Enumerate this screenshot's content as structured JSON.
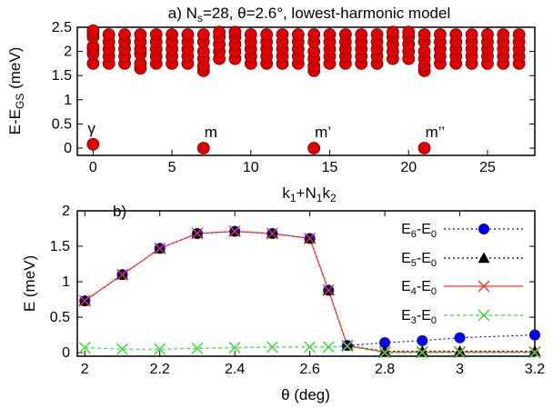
{
  "colors": {
    "red": "#e00000",
    "blue": "#0000ee",
    "black": "#000000",
    "green": "#00cc00",
    "red_line": "#ff3030",
    "green_line": "#30e030"
  },
  "chart_data": [
    {
      "type": "scatter",
      "title": {
        "a": "a) N",
        "sub": "s",
        "b": "=28, θ=2.6°,  lowest-harmonic model"
      },
      "ylabel": {
        "a": "E-E",
        "sub": "GS",
        "b": " (meV)"
      },
      "xlabel": {
        "a": "k",
        "s1": "1",
        "b": "+N",
        "s2": "1",
        "c": "k",
        "s3": "2"
      },
      "xlim": [
        -1,
        28
      ],
      "ylim": [
        -0.15,
        2.5
      ],
      "xticks": [
        "0",
        "5",
        "10",
        "15",
        "20",
        "25"
      ],
      "yticks": [
        "0",
        "0.5",
        "1",
        "1.5",
        "2",
        "2.5"
      ],
      "points": [
        [
          0,
          0.08
        ],
        [
          0,
          1.75
        ],
        [
          0,
          1.95
        ],
        [
          0,
          2.05
        ],
        [
          0,
          2.1
        ],
        [
          0,
          2.3
        ],
        [
          0,
          2.38
        ],
        [
          0,
          2.43
        ],
        [
          1,
          1.75
        ],
        [
          1,
          1.9
        ],
        [
          1,
          2.05
        ],
        [
          1,
          2.2
        ],
        [
          1,
          2.35
        ],
        [
          2,
          1.75
        ],
        [
          2,
          1.9
        ],
        [
          2,
          2.05
        ],
        [
          2,
          2.2
        ],
        [
          2,
          2.35
        ],
        [
          3,
          1.65
        ],
        [
          3,
          1.75
        ],
        [
          3,
          1.95
        ],
        [
          3,
          2.05
        ],
        [
          3,
          2.2
        ],
        [
          3,
          2.35
        ],
        [
          4,
          1.75
        ],
        [
          4,
          1.9
        ],
        [
          4,
          2.05
        ],
        [
          4,
          2.2
        ],
        [
          4,
          2.35
        ],
        [
          5,
          1.75
        ],
        [
          5,
          1.9
        ],
        [
          5,
          2.05
        ],
        [
          5,
          2.2
        ],
        [
          5,
          2.35
        ],
        [
          6,
          1.75
        ],
        [
          6,
          1.9
        ],
        [
          6,
          2.05
        ],
        [
          6,
          2.2
        ],
        [
          6,
          2.35
        ],
        [
          7,
          0.0
        ],
        [
          7,
          1.6
        ],
        [
          7,
          1.7
        ],
        [
          7,
          1.85
        ],
        [
          7,
          2.0
        ],
        [
          7,
          2.2
        ],
        [
          7,
          2.35
        ],
        [
          8,
          1.85
        ],
        [
          8,
          2.0
        ],
        [
          8,
          2.15
        ],
        [
          8,
          2.3
        ],
        [
          8,
          2.4
        ],
        [
          9,
          1.85
        ],
        [
          9,
          2.0
        ],
        [
          9,
          2.15
        ],
        [
          9,
          2.3
        ],
        [
          9,
          2.4
        ],
        [
          10,
          1.75
        ],
        [
          10,
          1.9
        ],
        [
          10,
          2.05
        ],
        [
          10,
          2.2
        ],
        [
          10,
          2.35
        ],
        [
          11,
          1.75
        ],
        [
          11,
          1.9
        ],
        [
          11,
          2.05
        ],
        [
          11,
          2.2
        ],
        [
          11,
          2.35
        ],
        [
          12,
          1.75
        ],
        [
          12,
          1.9
        ],
        [
          12,
          2.05
        ],
        [
          12,
          2.2
        ],
        [
          12,
          2.35
        ],
        [
          13,
          1.75
        ],
        [
          13,
          1.9
        ],
        [
          13,
          2.05
        ],
        [
          13,
          2.2
        ],
        [
          13,
          2.35
        ],
        [
          14,
          0.0
        ],
        [
          14,
          1.6
        ],
        [
          14,
          1.7
        ],
        [
          14,
          1.85
        ],
        [
          14,
          2.0
        ],
        [
          14,
          2.2
        ],
        [
          14,
          2.35
        ],
        [
          15,
          1.75
        ],
        [
          15,
          1.9
        ],
        [
          15,
          2.05
        ],
        [
          15,
          2.2
        ],
        [
          15,
          2.35
        ],
        [
          16,
          1.75
        ],
        [
          16,
          1.9
        ],
        [
          16,
          2.05
        ],
        [
          16,
          2.2
        ],
        [
          16,
          2.35
        ],
        [
          17,
          1.75
        ],
        [
          17,
          1.9
        ],
        [
          17,
          2.05
        ],
        [
          17,
          2.2
        ],
        [
          17,
          2.35
        ],
        [
          18,
          1.75
        ],
        [
          18,
          1.9
        ],
        [
          18,
          2.05
        ],
        [
          18,
          2.2
        ],
        [
          18,
          2.35
        ],
        [
          19,
          1.85
        ],
        [
          19,
          2.0
        ],
        [
          19,
          2.15
        ],
        [
          19,
          2.3
        ],
        [
          19,
          2.4
        ],
        [
          20,
          1.85
        ],
        [
          20,
          2.0
        ],
        [
          20,
          2.15
        ],
        [
          20,
          2.3
        ],
        [
          20,
          2.4
        ],
        [
          21,
          0.0
        ],
        [
          21,
          1.6
        ],
        [
          21,
          1.7
        ],
        [
          21,
          1.85
        ],
        [
          21,
          2.0
        ],
        [
          21,
          2.2
        ],
        [
          21,
          2.35
        ],
        [
          22,
          1.75
        ],
        [
          22,
          1.9
        ],
        [
          22,
          2.05
        ],
        [
          22,
          2.2
        ],
        [
          22,
          2.35
        ],
        [
          23,
          1.75
        ],
        [
          23,
          1.9
        ],
        [
          23,
          2.05
        ],
        [
          23,
          2.2
        ],
        [
          23,
          2.35
        ],
        [
          24,
          1.75
        ],
        [
          24,
          1.9
        ],
        [
          24,
          2.05
        ],
        [
          24,
          2.2
        ],
        [
          24,
          2.35
        ],
        [
          25,
          1.75
        ],
        [
          25,
          1.9
        ],
        [
          25,
          2.05
        ],
        [
          25,
          2.2
        ],
        [
          25,
          2.35
        ],
        [
          26,
          1.75
        ],
        [
          26,
          1.9
        ],
        [
          26,
          2.05
        ],
        [
          26,
          2.2
        ],
        [
          26,
          2.35
        ],
        [
          27,
          1.75
        ],
        [
          27,
          1.9
        ],
        [
          27,
          2.05
        ],
        [
          27,
          2.2
        ],
        [
          27,
          2.35
        ]
      ],
      "annotations": [
        {
          "text": "γ",
          "x": 0,
          "y": 0.08
        },
        {
          "text": "m",
          "x": 7,
          "y": 0.0
        },
        {
          "text": "m’",
          "x": 14,
          "y": 0.0
        },
        {
          "text": "m’’",
          "x": 21,
          "y": 0.0
        }
      ]
    },
    {
      "type": "line",
      "panel_label": "b)",
      "xlabel": "θ (deg)",
      "ylabel": "E (meV)",
      "xlim": [
        1.98,
        3.2
      ],
      "ylim": [
        -0.05,
        2.0
      ],
      "xticks": [
        "2",
        "2.2",
        "2.4",
        "2.6",
        "2.8",
        "3",
        "3.2"
      ],
      "yticks": [
        "0",
        "0.5",
        "1",
        "1.5",
        "2"
      ],
      "legend_position": "right",
      "series": [
        {
          "name": {
            "a": "E",
            "s1": "6",
            "b": "-E",
            "s2": "0"
          },
          "marker": "circle",
          "color": "#0000ee",
          "dash": "2,3",
          "x": [
            2.0,
            2.1,
            2.2,
            2.3,
            2.4,
            2.5,
            2.6,
            2.65,
            2.7,
            2.8,
            2.9,
            3.0,
            3.2
          ],
          "y": [
            0.73,
            1.1,
            1.47,
            1.68,
            1.71,
            1.68,
            1.61,
            0.88,
            0.1,
            0.14,
            0.17,
            0.21,
            0.25
          ]
        },
        {
          "name": {
            "a": "E",
            "s1": "5",
            "b": "-E",
            "s2": "0"
          },
          "marker": "triangle",
          "color": "#000000",
          "dash": "2,3",
          "x": [
            2.0,
            2.1,
            2.2,
            2.3,
            2.4,
            2.5,
            2.6,
            2.65,
            2.7,
            2.8,
            2.9,
            3.0,
            3.2
          ],
          "y": [
            0.73,
            1.1,
            1.47,
            1.68,
            1.71,
            1.68,
            1.61,
            0.88,
            0.1,
            0.02,
            0.02,
            0.02,
            0.02
          ]
        },
        {
          "name": {
            "a": "E",
            "s1": "4",
            "b": "-E",
            "s2": "0"
          },
          "marker": "x",
          "color": "#ff3030",
          "dash": "",
          "x": [
            2.0,
            2.1,
            2.2,
            2.3,
            2.4,
            2.5,
            2.6,
            2.65,
            2.7,
            2.8,
            2.9,
            3.0,
            3.2
          ],
          "y": [
            0.73,
            1.1,
            1.47,
            1.68,
            1.71,
            1.68,
            1.61,
            0.88,
            0.1,
            0.01,
            0.01,
            0.01,
            0.01
          ]
        },
        {
          "name": {
            "a": "E",
            "s1": "3",
            "b": "-E",
            "s2": "0"
          },
          "marker": "x",
          "color": "#30e030",
          "dash": "4,3",
          "x": [
            2.0,
            2.1,
            2.2,
            2.3,
            2.4,
            2.5,
            2.6,
            2.65,
            2.7,
            2.8,
            2.9,
            3.0,
            3.2
          ],
          "y": [
            0.07,
            0.05,
            0.05,
            0.06,
            0.07,
            0.08,
            0.08,
            0.08,
            0.09,
            0.0,
            0.0,
            0.0,
            0.0
          ]
        }
      ]
    }
  ]
}
